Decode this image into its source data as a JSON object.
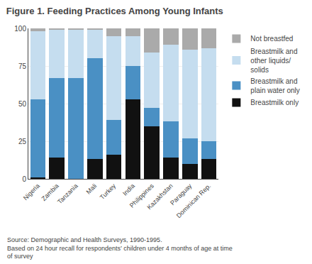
{
  "chart_data": {
    "type": "bar",
    "title": "Figure 1. Feeding Practices Among Young Infants",
    "categories": [
      "Nigeria",
      "Zambia",
      "Tanzania",
      "Mali",
      "Turkey",
      "India",
      "Philippines",
      "Kazakhstan",
      "Paraguay",
      "Dominican Rep."
    ],
    "series": [
      {
        "name": "Breastmilk only",
        "color": "#111111",
        "values": [
          1,
          14,
          0,
          13,
          16,
          53,
          35,
          14,
          10,
          13
        ]
      },
      {
        "name": "Breastmilk and\nplain water only",
        "color": "#4a90c4",
        "values": [
          52,
          53,
          67,
          67,
          23,
          22,
          12,
          24,
          17,
          12
        ]
      },
      {
        "name": "Breastmilk and\nother liquids/\nsolids",
        "color": "#c5ddef",
        "values": [
          45,
          32,
          32,
          19,
          56,
          20,
          37,
          51,
          59,
          62
        ]
      },
      {
        "name": "Not breastfed",
        "color": "#aaaaaa",
        "values": [
          2,
          1,
          1,
          1,
          5,
          5,
          16,
          11,
          14,
          13
        ]
      }
    ],
    "stacked": true,
    "ylim": [
      0,
      100
    ],
    "yticks": [
      0,
      25,
      50,
      75,
      100
    ],
    "grid": true,
    "legend": "right",
    "annotations": [
      "Source: Demographic and Health Surveys, 1990-1995.\nBased on 24 hour recall for respondents’ children under 4 months of age at time\nof survey"
    ],
    "background_color": "#ffffff"
  }
}
